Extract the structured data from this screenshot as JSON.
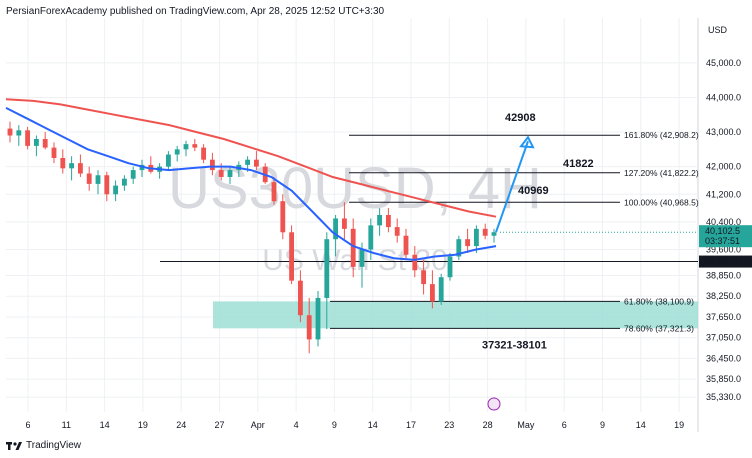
{
  "header": {
    "text": "PersianForexAcademy published on TradingView.com, Apr 28, 2025 12:52 UTC+3:30"
  },
  "footer": {
    "brand": "TradingView"
  },
  "price_axis_unit": "USD",
  "watermark": {
    "symbol": "US30USD, 4H",
    "name": "US Wall St 30"
  },
  "colors": {
    "up_candle": "#26a69a",
    "down_candle": "#ef5350",
    "ma_fast": "#2962ff",
    "ma_slow": "#ef5350",
    "zone": "#9edfd6",
    "projection": "#2196f3",
    "grid": "#eef0f3"
  },
  "chart_data": {
    "type": "candlestick",
    "symbol": "US30USD",
    "timeframe": "4H",
    "ylim": [
      34900,
      46300
    ],
    "y_ticks": [
      {
        "v": 45000,
        "label": "45,000.0"
      },
      {
        "v": 44000,
        "label": "44,000.0"
      },
      {
        "v": 43000,
        "label": "43,000.0"
      },
      {
        "v": 42000,
        "label": "42,000.0"
      },
      {
        "v": 41200,
        "label": "41,200.0"
      },
      {
        "v": 40400,
        "label": "40,400.0"
      },
      {
        "v": 39600,
        "label": "39,600.0"
      },
      {
        "v": 38850,
        "label": "38,850.0"
      },
      {
        "v": 38250,
        "label": "38,250.0"
      },
      {
        "v": 37650,
        "label": "37,650.0"
      },
      {
        "v": 37050,
        "label": "37,050.0"
      },
      {
        "v": 36450,
        "label": "36,450.0"
      },
      {
        "v": 35850,
        "label": "35,850.0"
      },
      {
        "v": 35330,
        "label": "35,330.0"
      }
    ],
    "x_ticks": [
      {
        "i": 0,
        "label": "6"
      },
      {
        "i": 1,
        "label": "11"
      },
      {
        "i": 2,
        "label": "14"
      },
      {
        "i": 3,
        "label": "19"
      },
      {
        "i": 4,
        "label": "24"
      },
      {
        "i": 5,
        "label": "27"
      },
      {
        "i": 6,
        "label": "Apr"
      },
      {
        "i": 7,
        "label": "4"
      },
      {
        "i": 8,
        "label": "9"
      },
      {
        "i": 9,
        "label": "14"
      },
      {
        "i": 10,
        "label": "17"
      },
      {
        "i": 11,
        "label": "23"
      },
      {
        "i": 12,
        "label": "28"
      },
      {
        "i": 13,
        "label": "May"
      },
      {
        "i": 14,
        "label": "6"
      },
      {
        "i": 15,
        "label": "9"
      },
      {
        "i": 16,
        "label": "14"
      },
      {
        "i": 17,
        "label": "19"
      }
    ],
    "current_price": {
      "value": 40102.5,
      "label": "40,102.5",
      "countdown": "03:37:51"
    },
    "support_level": {
      "value": 39252.8,
      "label": "39,252.8"
    },
    "fib_levels": [
      {
        "ratio": "161.80%",
        "price": 42908.2,
        "label": "161.80% (42,908.2)"
      },
      {
        "ratio": "127.20%",
        "price": 41822.2,
        "label": "127.20% (41,822.2)"
      },
      {
        "ratio": "100.00%",
        "price": 40968.5,
        "label": "100.00% (40,968.5)"
      },
      {
        "ratio": "61.80%",
        "price": 38100.9,
        "label": "61.80% (38,100.9)"
      },
      {
        "ratio": "78.60%",
        "price": 37321.3,
        "label": "78.60% (37,321.3)"
      }
    ],
    "annotations": [
      {
        "text": "42908",
        "price": 42908
      },
      {
        "text": "41822",
        "price": 41822
      },
      {
        "text": "40969",
        "price": 40969
      },
      {
        "text": "37321-38101",
        "price_low": 37321,
        "price_high": 38101
      }
    ],
    "zone": {
      "low": 37321.3,
      "high": 38100.9
    },
    "projection": {
      "from_price": 40102.5,
      "to_price": 42908
    },
    "candles": [
      [
        43100,
        43300,
        42700,
        42900
      ],
      [
        42900,
        43200,
        42600,
        43050
      ],
      [
        43050,
        43150,
        42500,
        42600
      ],
      [
        42600,
        42900,
        42300,
        42800
      ],
      [
        42800,
        43000,
        42500,
        42550
      ],
      [
        42550,
        42700,
        42100,
        42250
      ],
      [
        42250,
        42500,
        41800,
        41950
      ],
      [
        41950,
        42300,
        41600,
        42100
      ],
      [
        42100,
        42350,
        41700,
        41800
      ],
      [
        41800,
        42000,
        41300,
        41500
      ],
      [
        41500,
        41900,
        41200,
        41750
      ],
      [
        41750,
        41850,
        41000,
        41200
      ],
      [
        41200,
        41600,
        41000,
        41450
      ],
      [
        41450,
        41750,
        41300,
        41650
      ],
      [
        41650,
        42000,
        41500,
        41900
      ],
      [
        41900,
        42200,
        41700,
        42050
      ],
      [
        42050,
        42300,
        41800,
        41850
      ],
      [
        41850,
        42100,
        41650,
        42000
      ],
      [
        42000,
        42450,
        41900,
        42350
      ],
      [
        42350,
        42600,
        42150,
        42500
      ],
      [
        42500,
        42750,
        42300,
        42650
      ],
      [
        42650,
        42800,
        42450,
        42550
      ],
      [
        42550,
        42650,
        42100,
        42200
      ],
      [
        42200,
        42400,
        41750,
        41900
      ],
      [
        41900,
        42100,
        41600,
        41700
      ],
      [
        41700,
        42000,
        41500,
        41900
      ],
      [
        41900,
        42150,
        41700,
        42050
      ],
      [
        42050,
        42300,
        41850,
        42200
      ],
      [
        42200,
        42450,
        41900,
        42000
      ],
      [
        42000,
        42100,
        41500,
        41550
      ],
      [
        41550,
        41700,
        40900,
        41000
      ],
      [
        41000,
        41200,
        39900,
        40100
      ],
      [
        40100,
        40300,
        38600,
        38700
      ],
      [
        38700,
        39000,
        37500,
        37700
      ],
      [
        37700,
        38200,
        36600,
        37000
      ],
      [
        37000,
        38400,
        36800,
        38200
      ],
      [
        38200,
        40100,
        37300,
        39900
      ],
      [
        39900,
        40600,
        39400,
        40500
      ],
      [
        40500,
        40970,
        39900,
        40200
      ],
      [
        40200,
        40500,
        38800,
        39100
      ],
      [
        39100,
        39800,
        38500,
        39600
      ],
      [
        39600,
        40500,
        39300,
        40300
      ],
      [
        40300,
        40800,
        40000,
        40600
      ],
      [
        40600,
        40800,
        40100,
        40250
      ],
      [
        40250,
        40500,
        39800,
        40000
      ],
      [
        40000,
        40200,
        39300,
        39450
      ],
      [
        39450,
        39700,
        38800,
        39000
      ],
      [
        39000,
        39300,
        38300,
        38600
      ],
      [
        38600,
        39000,
        37900,
        38100
      ],
      [
        38100,
        38900,
        38000,
        38800
      ],
      [
        38800,
        39500,
        38700,
        39400
      ],
      [
        39400,
        40000,
        39300,
        39900
      ],
      [
        39900,
        40200,
        39500,
        39700
      ],
      [
        39700,
        40300,
        39500,
        40200
      ],
      [
        40200,
        40350,
        39900,
        40000
      ],
      [
        40000,
        40200,
        39800,
        40102.5
      ]
    ],
    "ma_fast": [
      43700,
      43400,
      43100,
      42800,
      42500,
      42300,
      42100,
      41950,
      41900,
      41950,
      42000,
      42000,
      41900,
      41700,
      41300,
      40700,
      40100,
      39700,
      39500,
      39350,
      39300,
      39400,
      39450,
      39600,
      39700
    ],
    "ma_slow": [
      43950,
      43900,
      43800,
      43650,
      43500,
      43350,
      43200,
      43000,
      42800,
      42550,
      42300,
      42000,
      41700,
      41500,
      41300,
      41100,
      40900,
      40700,
      40550
    ]
  }
}
